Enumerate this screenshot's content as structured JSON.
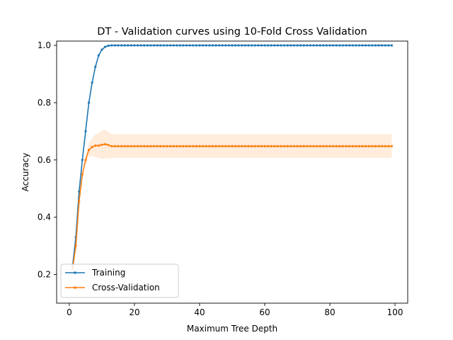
{
  "chart_data": {
    "type": "line",
    "title": "DT - Validation curves using 10-Fold Cross Validation",
    "xlabel": "Maximum Tree Depth",
    "ylabel": "Accuracy",
    "xlim": [
      -3.9,
      103.9
    ],
    "ylim": [
      0.1,
      1.015
    ],
    "x_ticks": [
      0,
      20,
      40,
      60,
      80,
      100
    ],
    "x_tick_labels": [
      "0",
      "20",
      "40",
      "60",
      "80",
      "100"
    ],
    "y_ticks": [
      0.2,
      0.4,
      0.6,
      0.8,
      1.0
    ],
    "y_tick_labels": [
      "0.2",
      "0.4",
      "0.6",
      "0.8",
      "1.0"
    ],
    "grid": false,
    "legend": {
      "position": "lower-left"
    },
    "x_range": {
      "start": 1,
      "end": 99,
      "step": 1
    },
    "series": [
      {
        "name": "Training",
        "color": "#1f77b4",
        "head": [
          0.23,
          0.33,
          0.49,
          0.6,
          0.7,
          0.8,
          0.87,
          0.925,
          0.965,
          0.985,
          0.995,
          0.999
        ],
        "tail": 1.0
      },
      {
        "name": "Cross-Validation",
        "color": "#ff7f0e",
        "head": [
          0.22,
          0.3,
          0.455,
          0.55,
          0.6,
          0.635,
          0.645,
          0.65,
          0.65,
          0.653,
          0.655,
          0.652,
          0.648
        ],
        "tail": 0.648,
        "band_color": "#ff7f0e",
        "band_opacity": 0.15,
        "band_lower_head": [
          0.22,
          0.3,
          0.455,
          0.545,
          0.585,
          0.61,
          0.615,
          0.61,
          0.607,
          0.604,
          0.605,
          0.606,
          0.607
        ],
        "band_lower_tail": 0.607,
        "band_upper_head": [
          0.22,
          0.3,
          0.455,
          0.555,
          0.615,
          0.66,
          0.675,
          0.69,
          0.693,
          0.702,
          0.705,
          0.698,
          0.69
        ],
        "band_upper_tail": 0.69
      }
    ]
  }
}
